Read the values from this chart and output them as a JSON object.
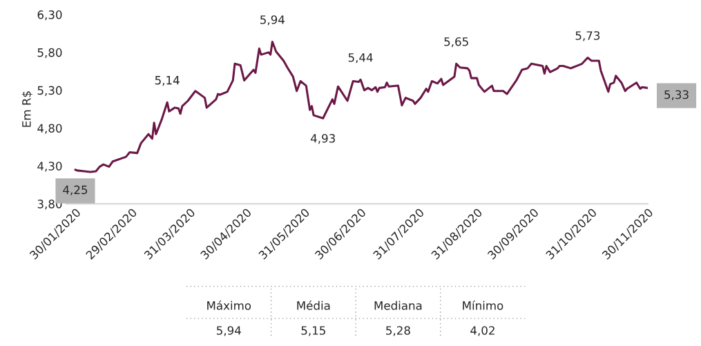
{
  "chart_data": [
    {
      "type": "line",
      "ylabel": "Em R$",
      "x": [
        "2020-01-30",
        "2020-01-31",
        "2020-02-04",
        "2020-02-07",
        "2020-02-10",
        "2020-02-12",
        "2020-02-14",
        "2020-02-17",
        "2020-02-19",
        "2020-02-26",
        "2020-02-28",
        "2020-03-03",
        "2020-03-05",
        "2020-03-09",
        "2020-03-11",
        "2020-03-12",
        "2020-03-13",
        "2020-03-16",
        "2020-03-19",
        "2020-03-20",
        "2020-03-23",
        "2020-03-25",
        "2020-03-26",
        "2020-03-27",
        "2020-03-30",
        "2020-04-03",
        "2020-04-08",
        "2020-04-09",
        "2020-04-14",
        "2020-04-15",
        "2020-04-16",
        "2020-04-20",
        "2020-04-23",
        "2020-04-24",
        "2020-04-27",
        "2020-04-29",
        "2020-05-04",
        "2020-05-05",
        "2020-05-07",
        "2020-05-08",
        "2020-05-12",
        "2020-05-13",
        "2020-05-14",
        "2020-05-16",
        "2020-05-20",
        "2020-05-22",
        "2020-05-25",
        "2020-05-27",
        "2020-05-29",
        "2020-06-01",
        "2020-06-03",
        "2020-06-04",
        "2020-06-05",
        "2020-06-10",
        "2020-06-12",
        "2020-06-15",
        "2020-06-16",
        "2020-06-18",
        "2020-06-23",
        "2020-06-26",
        "2020-06-29",
        "2020-06-30",
        "2020-07-02",
        "2020-07-04",
        "2020-07-06",
        "2020-07-08",
        "2020-07-09",
        "2020-07-10",
        "2020-07-13",
        "2020-07-14",
        "2020-07-15",
        "2020-07-20",
        "2020-07-22",
        "2020-07-24",
        "2020-07-28",
        "2020-07-29",
        "2020-08-01",
        "2020-08-04",
        "2020-08-05",
        "2020-08-07",
        "2020-08-10",
        "2020-08-12",
        "2020-08-13",
        "2020-08-19",
        "2020-08-20",
        "2020-08-22",
        "2020-08-26",
        "2020-08-27",
        "2020-08-28",
        "2020-08-31",
        "2020-09-01",
        "2020-09-04",
        "2020-09-08",
        "2020-09-09",
        "2020-09-14",
        "2020-09-16",
        "2020-09-21",
        "2020-09-24",
        "2020-09-27",
        "2020-09-29",
        "2020-10-05",
        "2020-10-06",
        "2020-10-07",
        "2020-10-09",
        "2020-10-13",
        "2020-10-14",
        "2020-10-16",
        "2020-10-20",
        "2020-10-21",
        "2020-10-23",
        "2020-10-26",
        "2020-10-29",
        "2020-10-31",
        "2020-11-04",
        "2020-11-05",
        "2020-11-09",
        "2020-11-10",
        "2020-11-12",
        "2020-11-13",
        "2020-11-16",
        "2020-11-18",
        "2020-11-19",
        "2020-11-24",
        "2020-11-26",
        "2020-11-27",
        "2020-11-30"
      ],
      "series": [
        {
          "color": "#6b1846",
          "values": [
            4.25,
            4.24,
            4.23,
            4.22,
            4.23,
            4.29,
            4.32,
            4.29,
            4.36,
            4.42,
            4.48,
            4.47,
            4.6,
            4.72,
            4.66,
            4.87,
            4.72,
            4.91,
            5.14,
            5.02,
            5.07,
            5.06,
            4.99,
            5.09,
            5.16,
            5.29,
            5.2,
            5.07,
            5.18,
            5.25,
            5.24,
            5.28,
            5.43,
            5.65,
            5.63,
            5.43,
            5.57,
            5.53,
            5.85,
            5.77,
            5.8,
            5.77,
            5.94,
            5.81,
            5.69,
            5.6,
            5.48,
            5.29,
            5.42,
            5.36,
            5.04,
            5.09,
            4.97,
            4.93,
            5.03,
            5.18,
            5.12,
            5.35,
            5.16,
            5.42,
            5.41,
            5.44,
            5.3,
            5.33,
            5.3,
            5.34,
            5.28,
            5.33,
            5.34,
            5.4,
            5.35,
            5.36,
            5.1,
            5.2,
            5.16,
            5.12,
            5.2,
            5.32,
            5.28,
            5.42,
            5.39,
            5.45,
            5.37,
            5.48,
            5.65,
            5.6,
            5.59,
            5.56,
            5.46,
            5.46,
            5.37,
            5.28,
            5.36,
            5.29,
            5.29,
            5.25,
            5.43,
            5.57,
            5.59,
            5.65,
            5.62,
            5.52,
            5.62,
            5.54,
            5.59,
            5.62,
            5.62,
            5.59,
            5.6,
            5.62,
            5.65,
            5.73,
            5.69,
            5.69,
            5.56,
            5.28,
            5.38,
            5.4,
            5.49,
            5.4,
            5.29,
            5.32,
            5.4,
            5.32,
            5.34,
            5.33
          ]
        }
      ],
      "xlim": [
        "2020-01-25",
        "2020-11-30"
      ],
      "xticks": [
        {
          "value": "2020-01-30",
          "label": "30/01/2020"
        },
        {
          "value": "2020-02-29",
          "label": "29/02/2020"
        },
        {
          "value": "2020-03-31",
          "label": "31/03/2020"
        },
        {
          "value": "2020-04-30",
          "label": "30/04/2020"
        },
        {
          "value": "2020-05-31",
          "label": "31/05/2020"
        },
        {
          "value": "2020-06-30",
          "label": "30/06/2020"
        },
        {
          "value": "2020-07-31",
          "label": "31/07/2020"
        },
        {
          "value": "2020-08-31",
          "label": "31/08/2020"
        },
        {
          "value": "2020-09-30",
          "label": "30/09/2020"
        },
        {
          "value": "2020-10-31",
          "label": "31/10/2020"
        },
        {
          "value": "2020-11-30",
          "label": "30/11/2020"
        }
      ],
      "ylim": [
        3.8,
        6.3
      ],
      "yticks": [
        {
          "value": 3.8,
          "label": "3,80"
        },
        {
          "value": 4.3,
          "label": "4,30"
        },
        {
          "value": 4.8,
          "label": "4,80"
        },
        {
          "value": 5.3,
          "label": "5,30"
        },
        {
          "value": 5.8,
          "label": "5,80"
        },
        {
          "value": 6.3,
          "label": "6,30"
        }
      ],
      "grid": false,
      "legend": false,
      "annotations": [
        {
          "text": "4,25",
          "x": "2020-01-30",
          "y": 4.25
        },
        {
          "text": "5,14",
          "x": "2020-03-19",
          "y": 5.14
        },
        {
          "text": "5,94",
          "x": "2020-05-14",
          "y": 5.94
        },
        {
          "text": "4,93",
          "x": "2020-06-10",
          "y": 4.93
        },
        {
          "text": "5,44",
          "x": "2020-06-30",
          "y": 5.44
        },
        {
          "text": "5,65",
          "x": "2020-08-20",
          "y": 5.65
        },
        {
          "text": "5,73",
          "x": "2020-10-29",
          "y": 5.73
        },
        {
          "text": "5,33",
          "x": "2020-11-30",
          "y": 5.33
        }
      ]
    },
    {
      "type": "other",
      "annotations": [
        "Máximo",
        "Média",
        "Mediana",
        "Mínimo",
        "5,94",
        "5,15",
        "5,28",
        "4,02"
      ]
    }
  ]
}
